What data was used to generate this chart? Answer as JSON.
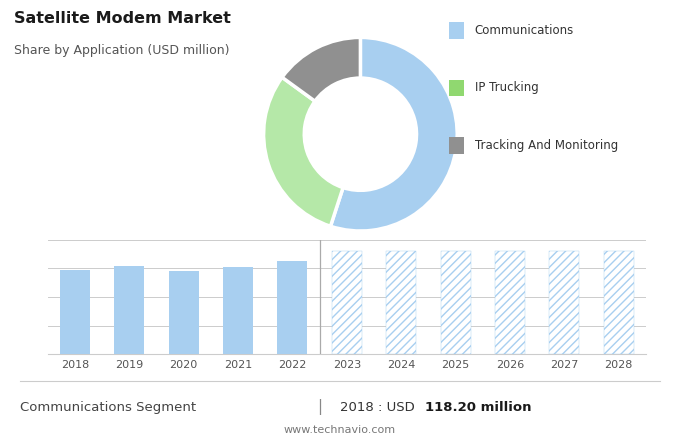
{
  "title": "Satellite Modem Market",
  "subtitle": "Share by Application (USD million)",
  "bg_color_top": "#dcdcdc",
  "bg_color_bottom": "#ffffff",
  "donut_values": [
    55,
    30,
    15
  ],
  "donut_colors": [
    "#a8cff0",
    "#b5e8a8",
    "#909090"
  ],
  "donut_labels": [
    "Communications",
    "IP Trucking",
    "Tracking And Monitoring"
  ],
  "legend_colors": [
    "#a8cff0",
    "#90d870",
    "#909090"
  ],
  "bar_years": [
    2018,
    2019,
    2020,
    2021,
    2022
  ],
  "bar_values": [
    118.2,
    124.0,
    117.0,
    122.0,
    130.0
  ],
  "forecast_years": [
    2023,
    2024,
    2025,
    2026,
    2027,
    2028
  ],
  "forecast_value": 145.0,
  "bar_color": "#a8cff0",
  "hatch_color": "#a8cff0",
  "footer_left": "Communications Segment",
  "footer_mid": "|",
  "footer_right_prefix": "2018 : USD ",
  "footer_right_bold": "118.20 million",
  "footer_url": "www.technavio.com",
  "grid_color": "#cccccc",
  "ylim_bar": [
    0,
    160
  ]
}
